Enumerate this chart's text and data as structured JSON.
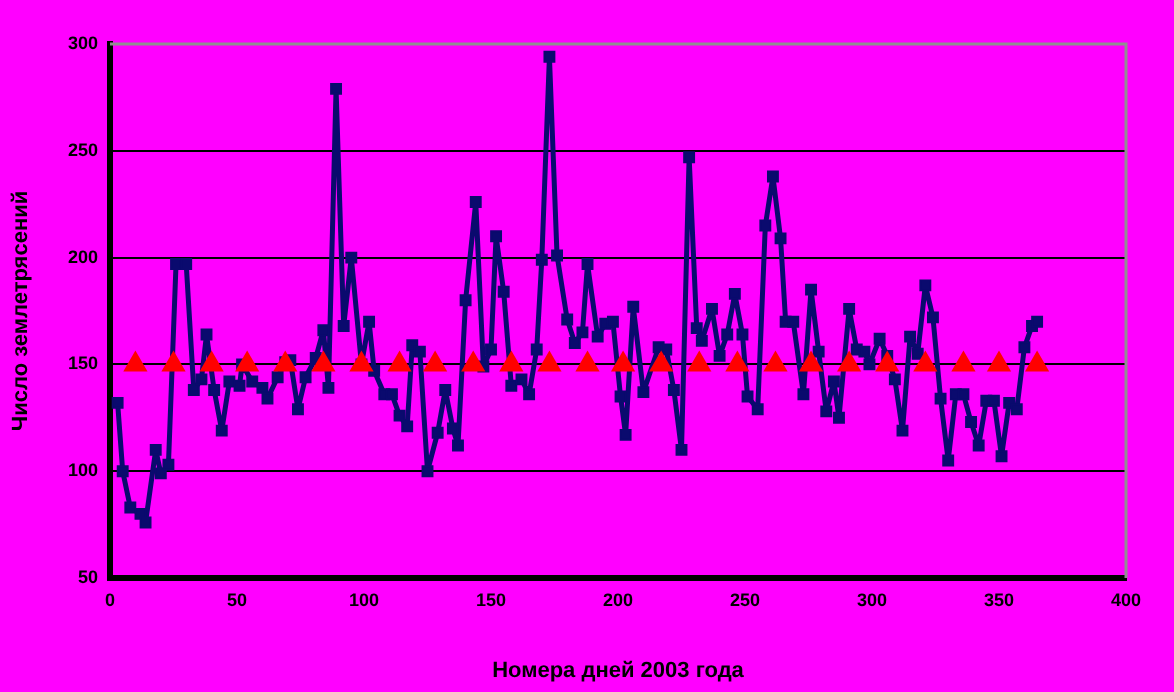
{
  "chart_data": {
    "type": "line",
    "xlabel": "Номера дней 2003 года",
    "ylabel": "Число землетрясений",
    "xlim": [
      0,
      400
    ],
    "xticks": [
      0,
      50,
      100,
      150,
      200,
      250,
      300,
      350,
      400
    ],
    "ylim": [
      50,
      300
    ],
    "yticks": [
      50,
      100,
      150,
      200,
      250,
      300
    ],
    "grid": "y",
    "legend": false,
    "line_style": "solid",
    "series": [
      {
        "marker": "square",
        "color": "#0a0a6e",
        "x": [
          3,
          5,
          8,
          12,
          14,
          18,
          20,
          23,
          26,
          30,
          33,
          36,
          38,
          41,
          44,
          47,
          51,
          52,
          56,
          60,
          62,
          66,
          69,
          71,
          74,
          77,
          81,
          84,
          86,
          89,
          92,
          95,
          99,
          102,
          104,
          108,
          111,
          114,
          117,
          119,
          122,
          125,
          129,
          132,
          135,
          137,
          140,
          144,
          147,
          150,
          152,
          155,
          158,
          162,
          165,
          168,
          170,
          173,
          176,
          180,
          183,
          186,
          188,
          192,
          195,
          198,
          201,
          203,
          206,
          210,
          216,
          219,
          222,
          225,
          228,
          231,
          233,
          237,
          240,
          243,
          246,
          249,
          251,
          255,
          258,
          261,
          264,
          266,
          269,
          273,
          276,
          279,
          282,
          285,
          287,
          291,
          294,
          297,
          299,
          303,
          306,
          309,
          312,
          315,
          318,
          321,
          324,
          327,
          330,
          333,
          336,
          339,
          342,
          345,
          348,
          351,
          354,
          357,
          360,
          363,
          365
        ],
        "values": [
          132,
          100,
          83,
          80,
          76,
          110,
          99,
          103,
          197,
          197,
          138,
          143,
          164,
          138,
          119,
          142,
          140,
          150,
          142,
          139,
          134,
          144,
          151,
          152,
          129,
          144,
          153,
          166,
          139,
          279,
          168,
          200,
          150,
          170,
          147,
          136,
          136,
          126,
          121,
          159,
          156,
          100,
          118,
          138,
          120,
          112,
          180,
          226,
          149,
          157,
          210,
          184,
          140,
          143,
          136,
          157,
          199,
          294,
          201,
          171,
          160,
          165,
          197,
          163,
          169,
          170,
          135,
          117,
          177,
          137,
          158,
          157,
          138,
          110,
          247,
          167,
          161,
          176,
          154,
          164,
          183,
          164,
          135,
          129,
          215,
          238,
          209,
          170,
          170,
          136,
          185,
          156,
          128,
          142,
          125,
          176,
          157,
          156,
          150,
          162,
          154,
          143,
          119,
          163,
          155,
          187,
          172,
          134,
          105,
          136,
          136,
          123,
          112,
          133,
          133,
          107,
          132,
          129,
          158,
          168,
          170
        ]
      },
      {
        "type": "scatter",
        "marker": "triangle",
        "color": "#ff0000",
        "x": [
          10,
          25,
          40,
          54,
          69,
          84,
          99,
          114,
          128,
          143,
          158,
          173,
          188,
          202,
          217,
          232,
          247,
          262,
          276,
          291,
          306,
          321,
          336,
          350,
          365
        ],
        "values": [
          150,
          150,
          150,
          150,
          150,
          150,
          150,
          150,
          150,
          150,
          150,
          150,
          150,
          150,
          150,
          150,
          150,
          150,
          150,
          150,
          150,
          150,
          150,
          150,
          150
        ]
      }
    ]
  }
}
